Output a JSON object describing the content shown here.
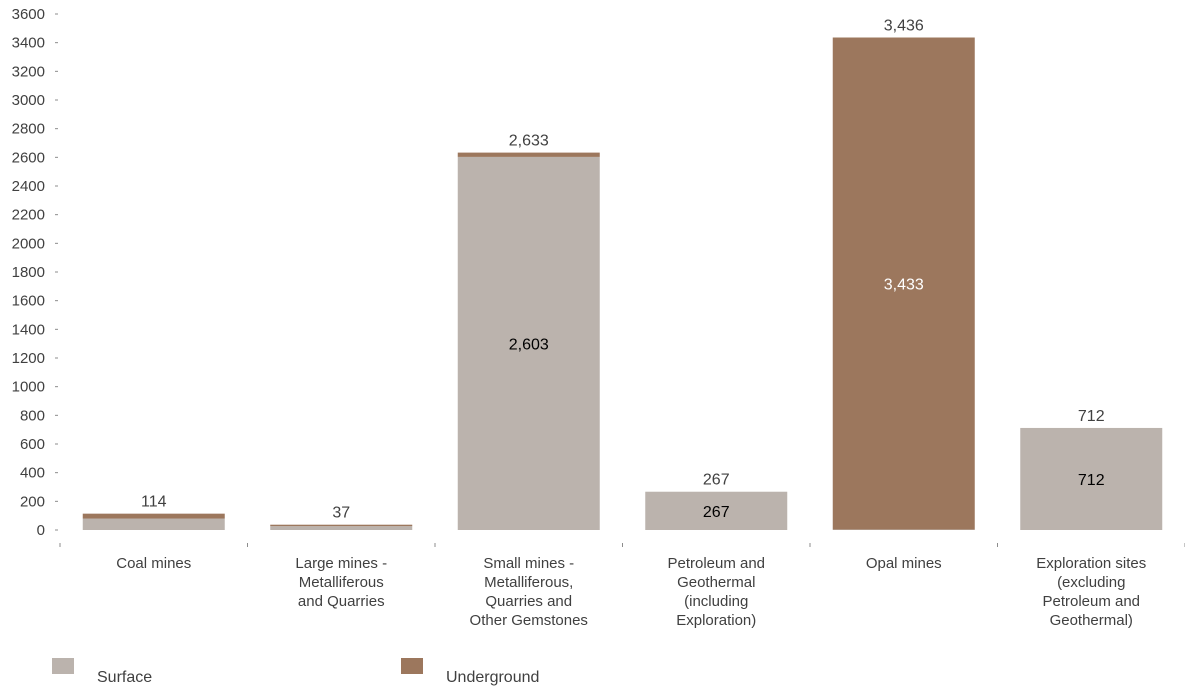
{
  "chart_data": {
    "type": "bar",
    "stacked": true,
    "categories": [
      [
        "Coal mines"
      ],
      [
        "Large mines -",
        "Metalliferous",
        "and Quarries"
      ],
      [
        "Small mines -",
        "Metalliferous,",
        "Quarries and",
        "Other Gemstones"
      ],
      [
        "Petroleum and",
        "Geothermal",
        "(including",
        "Exploration)"
      ],
      [
        "Opal mines"
      ],
      [
        "Exploration sites",
        "(excluding",
        "Petroleum and",
        "Geothermal)"
      ]
    ],
    "series": [
      {
        "name": "Surface",
        "color": "#bbb3ad",
        "values": [
          80,
          27,
          2603,
          267,
          3,
          712
        ]
      },
      {
        "name": "Underground",
        "color": "#9c775d",
        "values": [
          34,
          10,
          30,
          0,
          3433,
          0
        ]
      }
    ],
    "totals": [
      "114",
      "37",
      "2,633",
      "267",
      "3,436",
      "712"
    ],
    "inner_labels": [
      {
        "category_index": 2,
        "series": "Surface",
        "text": "2,603",
        "color": "#000000"
      },
      {
        "category_index": 3,
        "series": "Surface",
        "text": "267",
        "color": "#000000"
      },
      {
        "category_index": 4,
        "series": "Underground",
        "text": "3,433",
        "color": "#ffffff"
      },
      {
        "category_index": 5,
        "series": "Surface",
        "text": "712",
        "color": "#000000"
      }
    ],
    "yticks": [
      "0",
      "200",
      "400",
      "600",
      "800",
      "1000",
      "1200",
      "1400",
      "1600",
      "1800",
      "2000",
      "2200",
      "2400",
      "2600",
      "2800",
      "3000",
      "3200",
      "3400",
      "3600"
    ],
    "ylim": [
      0,
      3600
    ],
    "legend_position": "bottom-left",
    "grid": false
  }
}
